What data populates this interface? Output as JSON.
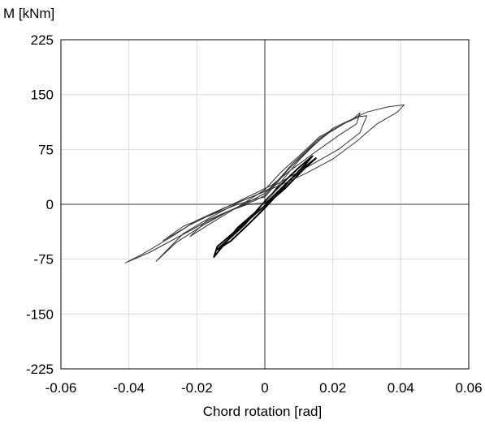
{
  "chart_data": {
    "type": "line",
    "title": "",
    "xlabel": "Chord rotation [rad]",
    "ylabel": "M [kNm]",
    "xlim": [
      -0.06,
      0.06
    ],
    "ylim": [
      -225,
      225
    ],
    "xticks": [
      -0.06,
      -0.04,
      -0.02,
      0,
      0.02,
      0.04,
      0.06
    ],
    "xtick_labels": [
      "-0.06",
      "-0.04",
      "-0.02",
      "0",
      "0.02",
      "0.04",
      "0.06"
    ],
    "yticks": [
      -225,
      -150,
      -75,
      0,
      75,
      150,
      225
    ],
    "ytick_labels": [
      "-225",
      "-150",
      "-75",
      "0",
      "75",
      "150",
      "225"
    ],
    "grid": true,
    "legend": false,
    "series": [
      {
        "color": "#000000",
        "x": [
          0,
          0.004,
          0.008,
          0.012,
          0.014,
          0.01,
          0.005,
          0,
          -0.003,
          -0.006,
          -0.01,
          -0.014,
          -0.01,
          -0.005,
          0,
          0.004,
          0.008,
          0.012,
          0.015,
          0.011,
          0.006,
          0.001,
          -0.004,
          -0.009,
          -0.014,
          -0.015,
          -0.012,
          -0.008,
          -0.003,
          0.001
        ],
        "y": [
          0,
          18,
          36,
          55,
          66,
          50,
          28,
          4,
          -12,
          -28,
          -45,
          -62,
          -50,
          -28,
          -5,
          15,
          36,
          52,
          63,
          46,
          22,
          2,
          -18,
          -38,
          -58,
          -72,
          -55,
          -32,
          -12,
          0
        ]
      },
      {
        "color": "#333333",
        "x": [
          0,
          0.005,
          0.01,
          0.016,
          0.02,
          0.016,
          0.011,
          0.005,
          0,
          -0.006,
          -0.012,
          -0.018,
          -0.022,
          -0.017,
          -0.011,
          -0.005,
          0
        ],
        "y": [
          2,
          32,
          60,
          88,
          102,
          92,
          70,
          45,
          20,
          2,
          -15,
          -32,
          -44,
          -22,
          -10,
          0,
          2
        ]
      },
      {
        "color": "#333333",
        "x": [
          0,
          0.007,
          0.014,
          0.02,
          0.026,
          0.028,
          0.027,
          0.022,
          0.015,
          0.008,
          0.002,
          -0.006,
          -0.014,
          -0.022,
          -0.03,
          -0.024,
          -0.016,
          -0.008,
          -0.002,
          0
        ],
        "y": [
          10,
          48,
          80,
          102,
          117,
          125,
          110,
          95,
          72,
          48,
          26,
          8,
          -10,
          -28,
          -50,
          -30,
          -15,
          0,
          8,
          10
        ]
      },
      {
        "color": "#333333",
        "x": [
          0,
          0.008,
          0.016,
          0.024,
          0.028,
          0.03,
          0.028,
          0.022,
          0.014,
          0.006,
          0,
          -0.008,
          -0.016,
          -0.024,
          -0.032,
          -0.026,
          -0.018,
          -0.01,
          -0.003,
          0
        ],
        "y": [
          12,
          55,
          90,
          112,
          120,
          121,
          98,
          76,
          55,
          34,
          18,
          2,
          -18,
          -40,
          -78,
          -52,
          -28,
          -8,
          5,
          12
        ]
      },
      {
        "color": "#333333",
        "x": [
          0,
          0.01,
          0.02,
          0.03,
          0.036,
          0.041,
          0.039,
          0.033,
          0.027,
          0.02,
          0.012,
          0.004,
          -0.004,
          -0.012,
          -0.02,
          -0.028,
          -0.036,
          -0.041,
          -0.034,
          -0.026,
          -0.018,
          -0.01,
          -0.004,
          0
        ],
        "y": [
          15,
          62,
          104,
          126,
          133,
          136,
          126,
          110,
          86,
          62,
          42,
          25,
          10,
          -5,
          -22,
          -46,
          -68,
          -80,
          -66,
          -46,
          -26,
          -8,
          5,
          15
        ]
      }
    ]
  }
}
